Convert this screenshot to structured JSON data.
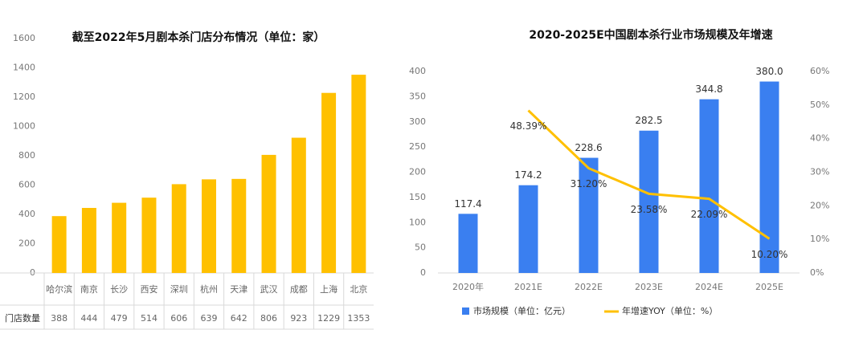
{
  "chart_data": [
    {
      "type": "bar",
      "title": "截至2022年5月剧本杀门店分布情况（单位：家）",
      "categories": [
        "哈尔滨",
        "南京",
        "长沙",
        "西安",
        "深圳",
        "杭州",
        "天津",
        "武汉",
        "成都",
        "上海",
        "北京"
      ],
      "values": [
        388,
        444,
        479,
        514,
        606,
        639,
        642,
        806,
        923,
        1229,
        1353
      ],
      "table_row_label": "门店数量",
      "color": "#ffc000",
      "ylim": [
        0,
        1600
      ],
      "yticks": [
        0,
        200,
        400,
        600,
        800,
        1000,
        1200,
        1400,
        1600
      ]
    },
    {
      "type": "bar_line",
      "title": "2020-2025E中国剧本杀行业市场规模及年增速",
      "categories": [
        "2020年",
        "2021E",
        "2022E",
        "2023E",
        "2024E",
        "2025E"
      ],
      "series": [
        {
          "name": "市场规模（单位：亿元）",
          "color": "#3a7ff0",
          "type": "bar",
          "values": [
            117.4,
            174.2,
            228.6,
            282.5,
            344.8,
            380.0
          ],
          "value_labels": [
            "117.4",
            "174.2",
            "228.6",
            "282.5",
            "344.8",
            "380.0"
          ]
        },
        {
          "name": "年增速YOY（单位：%）",
          "color": "#ffc000",
          "type": "line",
          "axis": "y2",
          "values": [
            null,
            48.39,
            31.2,
            23.58,
            22.09,
            10.2
          ],
          "value_labels": [
            null,
            "48.39%",
            "31.20%",
            "23.58%",
            "22.09%",
            "10.20%"
          ]
        }
      ],
      "ylim": [
        0,
        400
      ],
      "yticks": [
        0,
        50,
        100,
        150,
        200,
        250,
        300,
        350,
        400
      ],
      "y2lim": [
        0,
        60
      ],
      "y2ticks": [
        {
          "value": 0,
          "label": "0%"
        },
        {
          "value": 10,
          "label": "10%"
        },
        {
          "value": 20,
          "label": "20%"
        },
        {
          "value": 30,
          "label": "30%"
        },
        {
          "value": 40,
          "label": "40%"
        },
        {
          "value": 50,
          "label": "50%"
        },
        {
          "value": 60,
          "label": "60%"
        }
      ]
    }
  ]
}
